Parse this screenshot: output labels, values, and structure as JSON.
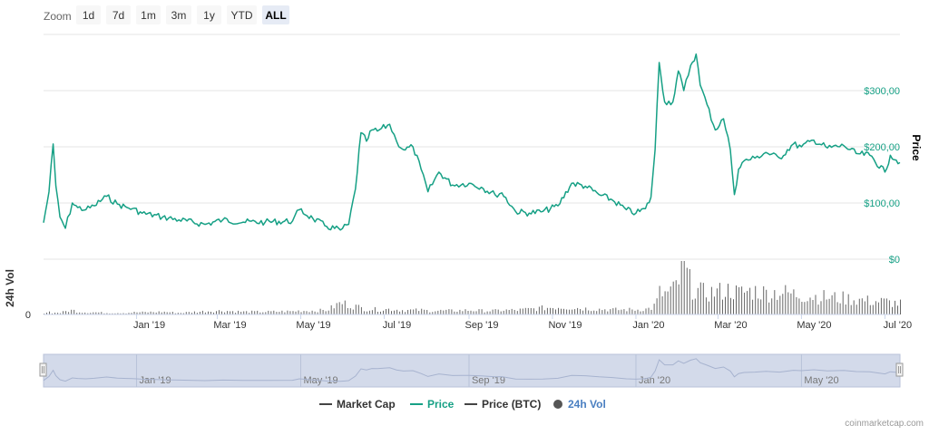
{
  "zoom": {
    "label": "Zoom",
    "buttons": [
      "1d",
      "7d",
      "1m",
      "3m",
      "1y",
      "YTD",
      "ALL"
    ],
    "active": "ALL"
  },
  "chart_data": {
    "type": "line",
    "x_ticks": [
      "Jan '19",
      "Mar '19",
      "May '19",
      "Jul '19",
      "Sep '19",
      "Nov '19",
      "Jan '20",
      "Mar '20",
      "May '20",
      "Jul '20"
    ],
    "navigator_ticks": [
      "Jan '19",
      "May '19",
      "Sep '19",
      "Jan '20",
      "May '20"
    ],
    "y_axis": {
      "title": "Price",
      "ticks": [
        "$0",
        "$100,00",
        "$200,00",
        "$300,00"
      ],
      "tick_values": [
        0,
        100,
        200,
        300
      ],
      "range": [
        0,
        400
      ],
      "color": "#16a085"
    },
    "volume_axis": {
      "title": "24h Vol",
      "ticks": [
        "0"
      ]
    },
    "series": [
      {
        "name": "Price",
        "color": "#16a085",
        "x": [
          "2018-10-25",
          "2018-10-29",
          "2018-11-01",
          "2018-11-03",
          "2018-11-06",
          "2018-11-10",
          "2018-11-15",
          "2018-11-19",
          "2018-11-25",
          "2018-12-01",
          "2018-12-10",
          "2018-12-18",
          "2018-12-25",
          "2018-12-29",
          "2019-01-05",
          "2019-01-20",
          "2019-02-01",
          "2019-02-20",
          "2019-03-05",
          "2019-03-20",
          "2019-04-05",
          "2019-04-25",
          "2019-04-30",
          "2019-05-10",
          "2019-05-20",
          "2019-05-30",
          "2019-06-05",
          "2019-06-10",
          "2019-06-14",
          "2019-06-18",
          "2019-06-22",
          "2019-06-26",
          "2019-07-05",
          "2019-07-10",
          "2019-07-15",
          "2019-07-22",
          "2019-07-28",
          "2019-08-02",
          "2019-08-10",
          "2019-08-20",
          "2019-09-01",
          "2019-09-10",
          "2019-09-20",
          "2019-09-25",
          "2019-10-05",
          "2019-10-15",
          "2019-10-25",
          "2019-11-05",
          "2019-11-15",
          "2019-11-25",
          "2019-12-05",
          "2019-12-15",
          "2019-12-25",
          "2020-01-01",
          "2020-01-08",
          "2020-01-12",
          "2020-01-15",
          "2020-01-18",
          "2020-01-22",
          "2020-01-28",
          "2020-02-01",
          "2020-02-05",
          "2020-02-10",
          "2020-02-14",
          "2020-02-17",
          "2020-02-22",
          "2020-02-28",
          "2020-03-05",
          "2020-03-10",
          "2020-03-13",
          "2020-03-16",
          "2020-03-20",
          "2020-03-28",
          "2020-04-05",
          "2020-04-15",
          "2020-04-25",
          "2020-05-01",
          "2020-05-10",
          "2020-05-20",
          "2020-06-01",
          "2020-06-10",
          "2020-06-20",
          "2020-07-01",
          "2020-07-05",
          "2020-07-12"
        ],
        "values": [
          65,
          120,
          205,
          130,
          75,
          55,
          100,
          92,
          88,
          95,
          112,
          98,
          92,
          90,
          82,
          75,
          70,
          62,
          70,
          66,
          66,
          68,
          88,
          72,
          58,
          52,
          62,
          125,
          225,
          210,
          230,
          228,
          240,
          210,
          195,
          200,
          160,
          120,
          155,
          132,
          135,
          128,
          115,
          118,
          85,
          82,
          85,
          95,
          135,
          130,
          115,
          105,
          88,
          82,
          90,
          110,
          195,
          350,
          280,
          280,
          335,
          300,
          345,
          365,
          310,
          275,
          230,
          250,
          195,
          115,
          160,
          175,
          180,
          190,
          180,
          205,
          200,
          212,
          198,
          202,
          188,
          185,
          155,
          185,
          172
        ]
      }
    ],
    "volume": {
      "name": "24h Vol",
      "values": [
        0.03,
        0.05,
        0.02,
        0.04,
        0.03,
        0.06,
        0.08,
        0.05,
        0.04,
        0.04,
        0.03,
        0.03,
        0.03,
        0.04,
        0.04,
        0.05,
        0.03,
        0.06,
        0.07,
        0.05,
        0.05,
        0.06,
        0.07,
        0.07,
        0.08,
        0.22,
        0.18,
        0.15,
        0.12,
        0.1,
        0.1,
        0.09,
        0.1,
        0.09,
        0.08,
        0.08,
        0.08,
        0.07,
        0.07,
        0.07,
        0.08,
        0.07,
        0.07,
        0.08,
        0.08,
        0.1,
        0.12,
        0.14,
        0.13,
        0.11,
        0.1,
        0.09,
        0.09,
        0.09,
        0.1,
        0.12,
        0.18,
        0.4,
        0.38,
        0.45,
        0.62,
        0.88,
        0.52,
        0.45,
        0.42,
        0.4,
        0.42,
        0.44,
        0.46,
        0.42,
        0.4,
        0.42,
        0.44,
        0.4,
        0.42,
        0.38,
        0.36,
        0.34,
        0.32,
        0.3,
        0.28,
        0.25,
        0.24,
        0.22,
        0.2
      ],
      "color": "#666666"
    },
    "legend": {
      "placement": "bottom-center",
      "items": [
        {
          "name": "Market Cap",
          "color": "#444444",
          "marker": "line",
          "text_color": "#333333"
        },
        {
          "name": "Price",
          "color": "#16a085",
          "marker": "line",
          "text_color": "#16a085"
        },
        {
          "name": "Price (BTC)",
          "color": "#444444",
          "marker": "line",
          "text_color": "#333333"
        },
        {
          "name": "24h Vol",
          "color": "#555555",
          "marker": "circle",
          "text_color": "#4a7fc1"
        }
      ]
    },
    "grid": true
  },
  "credit": "coinmarketcap.com"
}
